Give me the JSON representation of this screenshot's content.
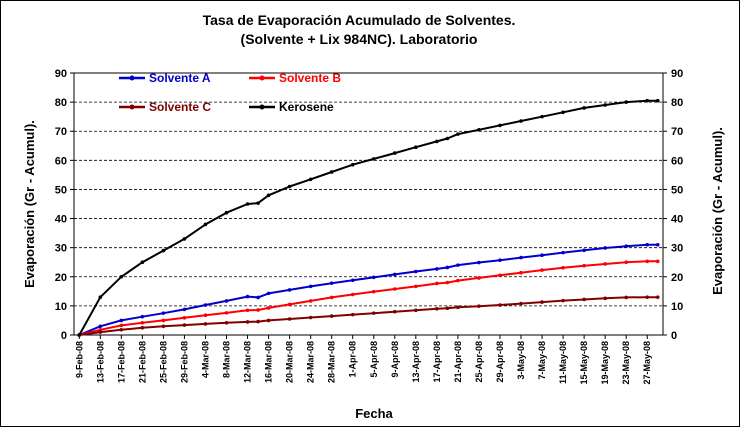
{
  "chart_data": {
    "type": "line",
    "title": "Tasa de Evaporación Acumulado de Solventes.",
    "subtitle": "(Solvente + Lix 984NC). Laboratorio",
    "xlabel": "Fecha",
    "ylabel": "Evaporación (Gr - Acumul).",
    "ylabel_right": "Evaporación (Gr - Acumul).",
    "ylim": [
      0,
      90
    ],
    "yticks": [
      "0",
      "10",
      "20",
      "30",
      "40",
      "50",
      "60",
      "70",
      "80",
      "90"
    ],
    "xticks": [
      "9-Feb-08",
      "13-Feb-08",
      "17-Feb-08",
      "21-Feb-08",
      "25-Feb-08",
      "29-Feb-08",
      "4-Mar-08",
      "8-Mar-08",
      "12-Mar-08",
      "16-Mar-08",
      "20-Mar-08",
      "24-Mar-08",
      "28-Mar-08",
      "1-Apr-08",
      "5-Apr-08",
      "9-Apr-08",
      "13-Apr-08",
      "17-Apr-08",
      "21-Apr-08",
      "25-Apr-08",
      "29-Apr-08",
      "3-May-08",
      "7-May-08",
      "11-May-08",
      "15-May-08",
      "19-May-08",
      "23-May-08",
      "27-May-08"
    ],
    "x": [
      "9-Feb-08",
      "13-Feb-08",
      "17-Feb-08",
      "21-Feb-08",
      "25-Feb-08",
      "29-Feb-08",
      "4-Mar-08",
      "8-Mar-08",
      "12-Mar-08",
      "14-Mar-08",
      "16-Mar-08",
      "20-Mar-08",
      "24-Mar-08",
      "28-Mar-08",
      "1-Apr-08",
      "5-Apr-08",
      "9-Apr-08",
      "13-Apr-08",
      "17-Apr-08",
      "19-Apr-08",
      "21-Apr-08",
      "25-Apr-08",
      "29-Apr-08",
      "3-May-08",
      "7-May-08",
      "11-May-08",
      "15-May-08",
      "19-May-08",
      "23-May-08",
      "27-May-08",
      "29-May-08"
    ],
    "grid": true,
    "legend_position": "top-left",
    "series": [
      {
        "name": "Solvente A",
        "color": "#0000cc",
        "values": [
          0,
          3,
          5,
          6.3,
          7.5,
          8.8,
          10.3,
          11.7,
          13.2,
          12.9,
          14.3,
          15.5,
          16.7,
          17.8,
          18.8,
          19.8,
          20.8,
          21.8,
          22.7,
          23.2,
          24,
          24.9,
          25.7,
          26.6,
          27.4,
          28.3,
          29.1,
          29.9,
          30.5,
          31,
          31
        ]
      },
      {
        "name": "Solvente B",
        "color": "#ff0000",
        "values": [
          0,
          1.8,
          3.3,
          4.2,
          5.0,
          5.9,
          6.8,
          7.6,
          8.5,
          8.6,
          9.3,
          10.5,
          11.7,
          12.9,
          13.9,
          14.9,
          15.8,
          16.7,
          17.7,
          18.0,
          18.7,
          19.6,
          20.5,
          21.4,
          22.3,
          23.1,
          23.8,
          24.4,
          25.0,
          25.3,
          25.3
        ]
      },
      {
        "name": "Solvente C",
        "color": "#800000",
        "values": [
          0,
          1.0,
          1.8,
          2.5,
          3.0,
          3.4,
          3.8,
          4.2,
          4.5,
          4.6,
          5.0,
          5.5,
          6.0,
          6.5,
          7.0,
          7.5,
          8.0,
          8.5,
          9.0,
          9.2,
          9.5,
          9.9,
          10.3,
          10.8,
          11.3,
          11.8,
          12.2,
          12.6,
          12.9,
          13.0,
          13.0
        ]
      },
      {
        "name": "Kerosene",
        "color": "#000000",
        "values": [
          0,
          13,
          20,
          25,
          29,
          33,
          38,
          42,
          45,
          45.3,
          48,
          51,
          53.5,
          56,
          58.5,
          60.5,
          62.5,
          64.5,
          66.5,
          67.5,
          69,
          70.5,
          72,
          73.5,
          75,
          76.5,
          78,
          79,
          80,
          80.5,
          80.5
        ]
      }
    ]
  }
}
